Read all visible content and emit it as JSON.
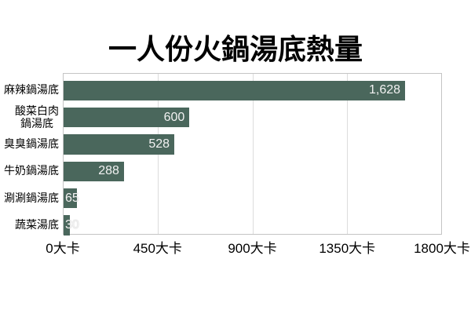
{
  "title": "一人份火鍋湯底熱量",
  "colors": {
    "bar": "#4A675C",
    "grid": "#dcdcdc",
    "plot_border": "#c4c4c4",
    "value_label": "#f2f2f2",
    "text": "#000000",
    "background": "#ffffff"
  },
  "chart_data": {
    "type": "bar",
    "orientation": "horizontal",
    "title": "一人份火鍋湯底熱量",
    "categories": [
      "麻辣鍋湯底",
      "酸菜白肉鍋湯底",
      "臭臭鍋湯底",
      "牛奶鍋湯底",
      "涮涮鍋湯底",
      "蔬菜湯底"
    ],
    "category_label_lines": [
      [
        "麻辣鍋湯底"
      ],
      [
        "酸菜白肉",
        "鍋湯底"
      ],
      [
        "臭臭鍋湯底"
      ],
      [
        "牛奶鍋湯底"
      ],
      [
        "涮涮鍋湯底"
      ],
      [
        "蔬菜湯底"
      ]
    ],
    "values": [
      1628,
      600,
      528,
      288,
      65,
      30
    ],
    "value_labels": [
      "1,628",
      "600",
      "528",
      "288",
      "65",
      "30"
    ],
    "unit": "大卡",
    "xlim": [
      0,
      1800
    ],
    "x_ticks": [
      0,
      450,
      900,
      1350,
      1800
    ],
    "x_tick_labels": [
      "0大卡",
      "450大卡",
      "900大卡",
      "1350大卡",
      "1800大卡"
    ],
    "grid": true,
    "legend": false
  }
}
